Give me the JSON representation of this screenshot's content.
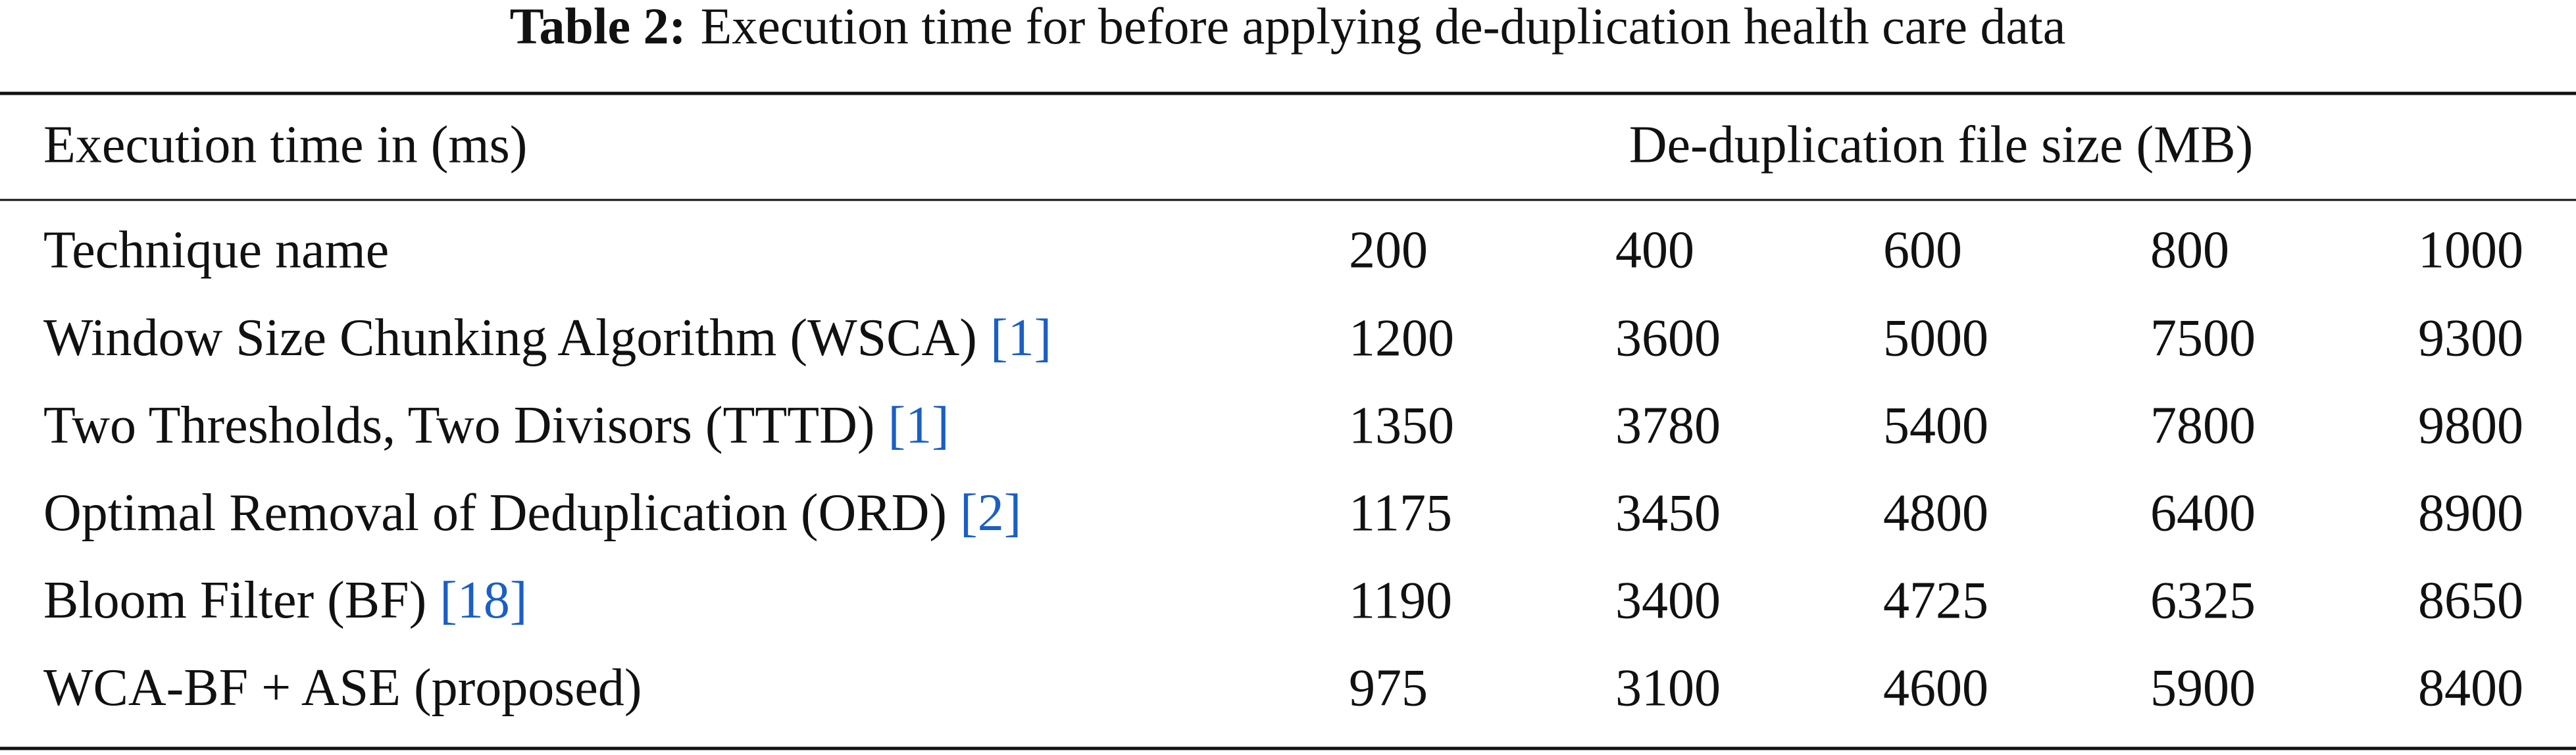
{
  "caption": {
    "label": "Table 2:",
    "text": "Execution time for before applying de-duplication health care data"
  },
  "table": {
    "header": [
      "Execution time in (ms)",
      "De-duplication file size (MB)"
    ],
    "columns": [
      "Technique name",
      200,
      400,
      600,
      800,
      1000
    ],
    "rows": [
      {
        "name": "Window Size Chunking Algorithm (WSCA)",
        "ref": "[1]",
        "values": [
          1200,
          3600,
          5000,
          7500,
          9300
        ]
      },
      {
        "name": "Two Thresholds, Two Divisors (TTTD)",
        "ref": "[1]",
        "values": [
          1350,
          3780,
          5400,
          7800,
          9800
        ]
      },
      {
        "name": "Optimal Removal of Deduplication (ORD)",
        "ref": "[2]",
        "values": [
          1175,
          3450,
          4800,
          6400,
          8900
        ]
      },
      {
        "name": "Bloom Filter (BF)",
        "ref": "[18]",
        "values": [
          1190,
          3400,
          4725,
          6325,
          8650
        ]
      },
      {
        "name": "WCA-BF + ASE (proposed)",
        "values": [
          975,
          3100,
          4600,
          5900,
          8400
        ]
      }
    ]
  }
}
